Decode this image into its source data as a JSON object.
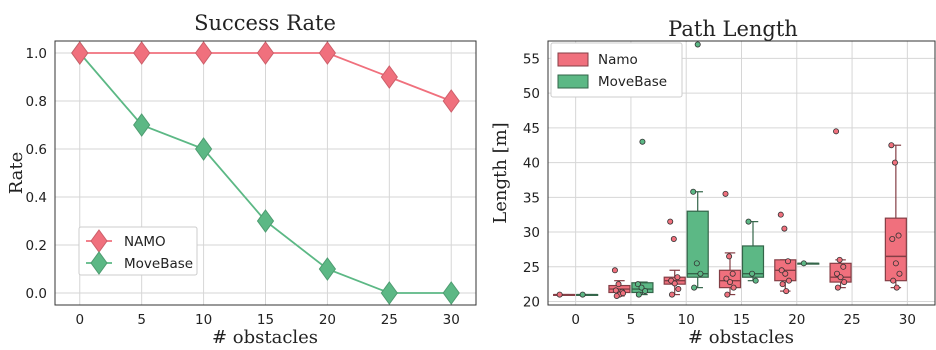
{
  "colors": {
    "namo": "#f0707d",
    "movebase": "#5cb885",
    "namo_edge": "#e8566a",
    "movebase_edge": "#3f9b6b"
  },
  "chart_data": [
    {
      "type": "line",
      "title": "Success Rate",
      "xlabel": "# obstacles",
      "ylabel": "Rate",
      "xlim": [
        -2,
        32
      ],
      "ylim": [
        -0.05,
        1.05
      ],
      "x_ticks": [
        "0",
        "5",
        "10",
        "15",
        "20",
        "25",
        "30"
      ],
      "y_ticks": [
        "0.0",
        "0.2",
        "0.4",
        "0.6",
        "0.8",
        "1.0"
      ],
      "grid": true,
      "legend": "lower-left",
      "x": [
        0,
        5,
        10,
        15,
        20,
        25,
        30
      ],
      "series": [
        {
          "name": "NAMO",
          "color": "#f0707d",
          "values": [
            1.0,
            1.0,
            1.0,
            1.0,
            1.0,
            0.9,
            0.8
          ]
        },
        {
          "name": "MoveBase",
          "color": "#5cb885",
          "values": [
            1.0,
            0.7,
            0.6,
            0.3,
            0.1,
            0.0,
            0.0
          ]
        }
      ]
    },
    {
      "type": "box",
      "title": "Path Length",
      "xlabel": "# obstacles",
      "ylabel": "Length [m]",
      "ylim": [
        19.5,
        57.5
      ],
      "categories": [
        "0",
        "5",
        "10",
        "15",
        "20",
        "25",
        "30"
      ],
      "y_ticks": [
        "20",
        "25",
        "30",
        "35",
        "40",
        "45",
        "50",
        "55"
      ],
      "grid": true,
      "legend": "top-left",
      "series": [
        {
          "name": "Namo",
          "color": "#f0707d",
          "boxes": [
            {
              "category": "0",
              "min": 21.0,
              "q1": 21.0,
              "median": 21.0,
              "q3": 21.0,
              "max": 21.0,
              "points": [
                21.0
              ],
              "outliers": []
            },
            {
              "category": "5",
              "min": 20.8,
              "q1": 21.3,
              "median": 21.8,
              "q3": 22.3,
              "max": 23.0,
              "points": [
                24.5,
                22.5,
                21.4,
                21.6,
                21.0,
                21.2,
                20.8
              ],
              "outliers": []
            },
            {
              "category": "10",
              "min": 21.0,
              "q1": 22.5,
              "median": 23.0,
              "q3": 23.5,
              "max": 24.5,
              "points": [
                31.5,
                29.0,
                23.5,
                23.0,
                22.6,
                21.8,
                21.0
              ],
              "outliers": []
            },
            {
              "category": "15",
              "min": 21.0,
              "q1": 22.0,
              "median": 23.0,
              "q3": 24.5,
              "max": 27.0,
              "points": [
                35.5,
                26.5,
                24.0,
                23.3,
                22.8,
                22.0,
                21.0
              ],
              "outliers": []
            },
            {
              "category": "20",
              "min": 21.5,
              "q1": 23.0,
              "median": 24.5,
              "q3": 26.0,
              "max": 26.0,
              "points": [
                32.5,
                30.5,
                25.8,
                24.5,
                24.0,
                23.0,
                22.5,
                21.5
              ],
              "outliers": []
            },
            {
              "category": "25",
              "min": 22.0,
              "q1": 22.8,
              "median": 23.5,
              "q3": 25.5,
              "max": 26.0,
              "points": [
                44.5,
                26.0,
                25.0,
                24.0,
                23.5,
                22.8,
                22.0
              ],
              "outliers": []
            },
            {
              "category": "30",
              "min": 22.0,
              "q1": 23.0,
              "median": 26.5,
              "q3": 32.0,
              "max": 42.5,
              "points": [
                42.5,
                40.0,
                29.5,
                29.0,
                25.5,
                24.0,
                23.0,
                22.0
              ],
              "outliers": []
            }
          ]
        },
        {
          "name": "MoveBase",
          "color": "#5cb885",
          "boxes": [
            {
              "category": "0",
              "min": 21.0,
              "q1": 21.0,
              "median": 21.0,
              "q3": 21.0,
              "max": 21.0,
              "points": [
                21.0
              ],
              "outliers": []
            },
            {
              "category": "5",
              "min": 21.0,
              "q1": 21.3,
              "median": 21.8,
              "q3": 22.7,
              "max": 22.8,
              "points": [
                22.5,
                22.0,
                21.5,
                21.0
              ],
              "outliers": [
                43.0
              ]
            },
            {
              "category": "10",
              "min": 22.0,
              "q1": 23.5,
              "median": 24.0,
              "q3": 33.0,
              "max": 35.8,
              "points": [
                35.8,
                25.5,
                24.0,
                22.0
              ],
              "outliers": [
                57.0
              ]
            },
            {
              "category": "15",
              "min": 23.0,
              "q1": 23.5,
              "median": 24.0,
              "q3": 28.0,
              "max": 31.5,
              "points": [
                31.5,
                24.0,
                23.0
              ],
              "outliers": []
            },
            {
              "category": "20",
              "min": 25.5,
              "q1": 25.5,
              "median": 25.5,
              "q3": 25.5,
              "max": 25.5,
              "points": [
                25.5
              ],
              "outliers": []
            },
            {
              "category": "25",
              "min": null,
              "q1": null,
              "median": null,
              "q3": null,
              "max": null,
              "points": [],
              "outliers": []
            },
            {
              "category": "30",
              "min": null,
              "q1": null,
              "median": null,
              "q3": null,
              "max": null,
              "points": [],
              "outliers": []
            }
          ]
        }
      ]
    }
  ]
}
